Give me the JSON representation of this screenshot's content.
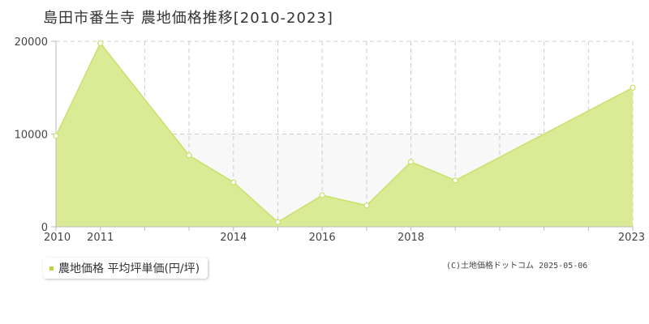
{
  "chart_title": "島田市番生寺 農地価格推移[2010-2023]",
  "legend": {
    "label": "農地価格 平均坪単価(円/坪)"
  },
  "copyright": "(C)土地価格ドットコム 2025-05-06",
  "colors": {
    "fill": "#dbea94",
    "line": "#c7e16a",
    "point_fill": "#ffffff",
    "band": "#f8f8f8",
    "grid": "#cccccc",
    "axis": "#bbbbbb",
    "legend_marker": "#b5d93a"
  },
  "chart_data": {
    "type": "area",
    "title": "島田市番生寺 農地価格推移[2010-2023]",
    "x": [
      2010,
      2011,
      2012,
      2013,
      2014,
      2015,
      2016,
      2017,
      2018,
      2019,
      2020,
      2021,
      2022,
      2023
    ],
    "x_tick_labels": [
      "2010",
      "2011",
      "2014",
      "2016",
      "2018",
      "2023"
    ],
    "y_tick_labels": [
      "0",
      "10000",
      "20000"
    ],
    "ylim": [
      0,
      20000
    ],
    "grid": true,
    "legend_position": "bottom-left",
    "series": [
      {
        "name": "農地価格 平均坪単価(円/坪)",
        "x": [
          2010,
          2011,
          2013,
          2014,
          2015,
          2016,
          2017,
          2018,
          2019,
          2023
        ],
        "values": [
          9800,
          19800,
          7700,
          4800,
          500,
          3400,
          2300,
          7000,
          5000,
          15000
        ]
      }
    ]
  }
}
